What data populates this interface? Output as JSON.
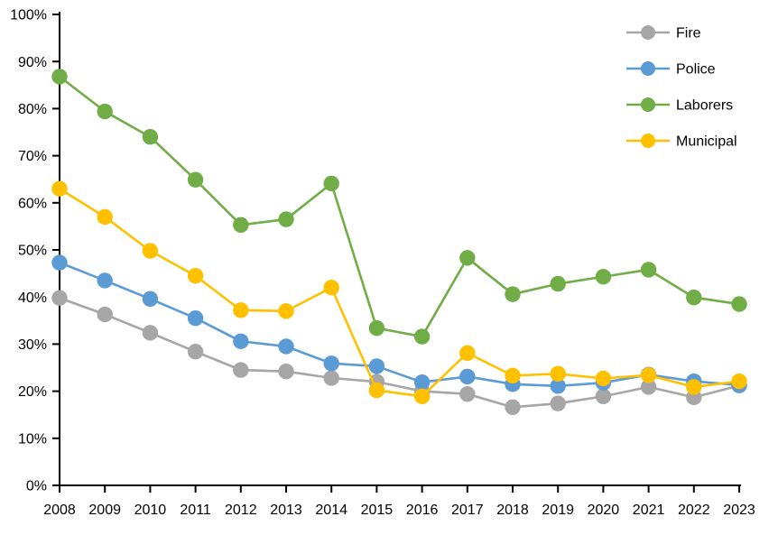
{
  "chart_data": {
    "type": "line",
    "title": "",
    "xlabel": "",
    "ylabel": "",
    "grid": false,
    "background": "#FFFFFF",
    "axis_color": "#000000",
    "legend_position": "top-right",
    "ylim": [
      0,
      100
    ],
    "ytick_step": 10,
    "ytick_labels": [
      "0%",
      "10%",
      "20%",
      "30%",
      "40%",
      "50%",
      "60%",
      "70%",
      "80%",
      "90%",
      "100%"
    ],
    "categories": [
      "2008",
      "2009",
      "2010",
      "2011",
      "2012",
      "2013",
      "2014",
      "2015",
      "2016",
      "2017",
      "2018",
      "2019",
      "2020",
      "2021",
      "2022",
      "2023"
    ],
    "series": [
      {
        "name": "Fire",
        "color": "#A6A6A6",
        "values": [
          39.8,
          36.3,
          32.4,
          28.4,
          24.5,
          24.2,
          22.8,
          22.0,
          20.0,
          19.4,
          16.6,
          17.4,
          18.9,
          20.9,
          18.7,
          21.2
        ]
      },
      {
        "name": "Police",
        "color": "#5B9BD5",
        "values": [
          47.3,
          43.5,
          39.6,
          35.5,
          30.6,
          29.5,
          25.9,
          25.3,
          21.9,
          23.1,
          21.5,
          21.1,
          21.8,
          23.5,
          22.1,
          21.3
        ]
      },
      {
        "name": "Laborers",
        "color": "#70AD47",
        "values": [
          86.8,
          79.4,
          74.0,
          64.9,
          55.3,
          56.5,
          64.1,
          33.4,
          31.6,
          48.3,
          40.6,
          42.8,
          44.3,
          45.8,
          39.9,
          38.5
        ]
      },
      {
        "name": "Municipal",
        "color": "#FFC000",
        "values": [
          63.0,
          57.0,
          49.8,
          44.5,
          37.2,
          37.0,
          42.0,
          20.2,
          18.9,
          28.1,
          23.3,
          23.7,
          22.7,
          23.4,
          20.9,
          22.1
        ]
      }
    ]
  }
}
